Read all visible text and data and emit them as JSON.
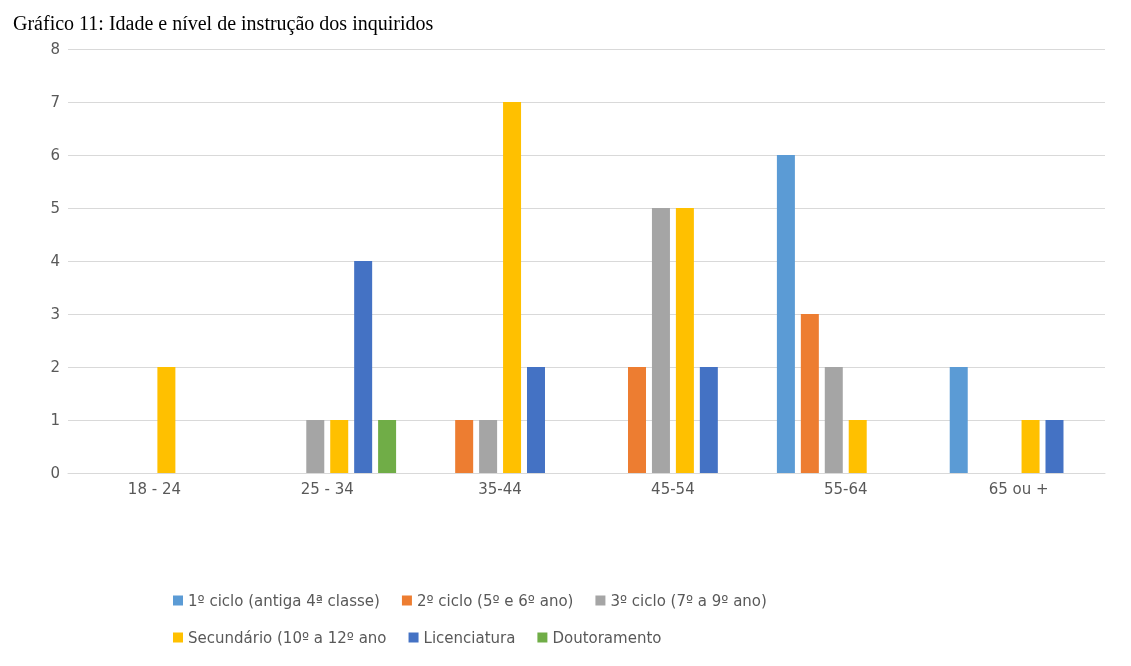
{
  "chart_data": {
    "type": "bar",
    "title": "Gráfico 11: Idade e nível de instrução dos inquiridos",
    "categories": [
      "18 - 24",
      "25 - 34",
      "35-44",
      "45-54",
      "55-64",
      "65 ou +"
    ],
    "series": [
      {
        "name": "1º ciclo (antiga 4ª classe)",
        "color": "#5b9bd5",
        "values": [
          0,
          0,
          0,
          0,
          6,
          2
        ]
      },
      {
        "name": "2º ciclo (5º e 6º ano)",
        "color": "#ed7d31",
        "values": [
          0,
          0,
          1,
          2,
          3,
          0
        ]
      },
      {
        "name": "3º ciclo (7º a 9º ano)",
        "color": "#a5a5a5",
        "values": [
          0,
          1,
          1,
          5,
          2,
          0
        ]
      },
      {
        "name": "Secundário (10º a 12º ano",
        "color": "#ffc000",
        "values": [
          2,
          1,
          7,
          5,
          1,
          1
        ]
      },
      {
        "name": "Licenciatura",
        "color": "#4472c4",
        "values": [
          0,
          4,
          2,
          2,
          0,
          1
        ]
      },
      {
        "name": "Doutoramento",
        "color": "#70ad47",
        "values": [
          0,
          1,
          0,
          0,
          0,
          0
        ]
      }
    ],
    "ylim": [
      0,
      8
    ],
    "yticks": [
      0,
      1,
      2,
      3,
      4,
      5,
      6,
      7,
      8
    ],
    "grid": "y",
    "legend": "bottom"
  }
}
